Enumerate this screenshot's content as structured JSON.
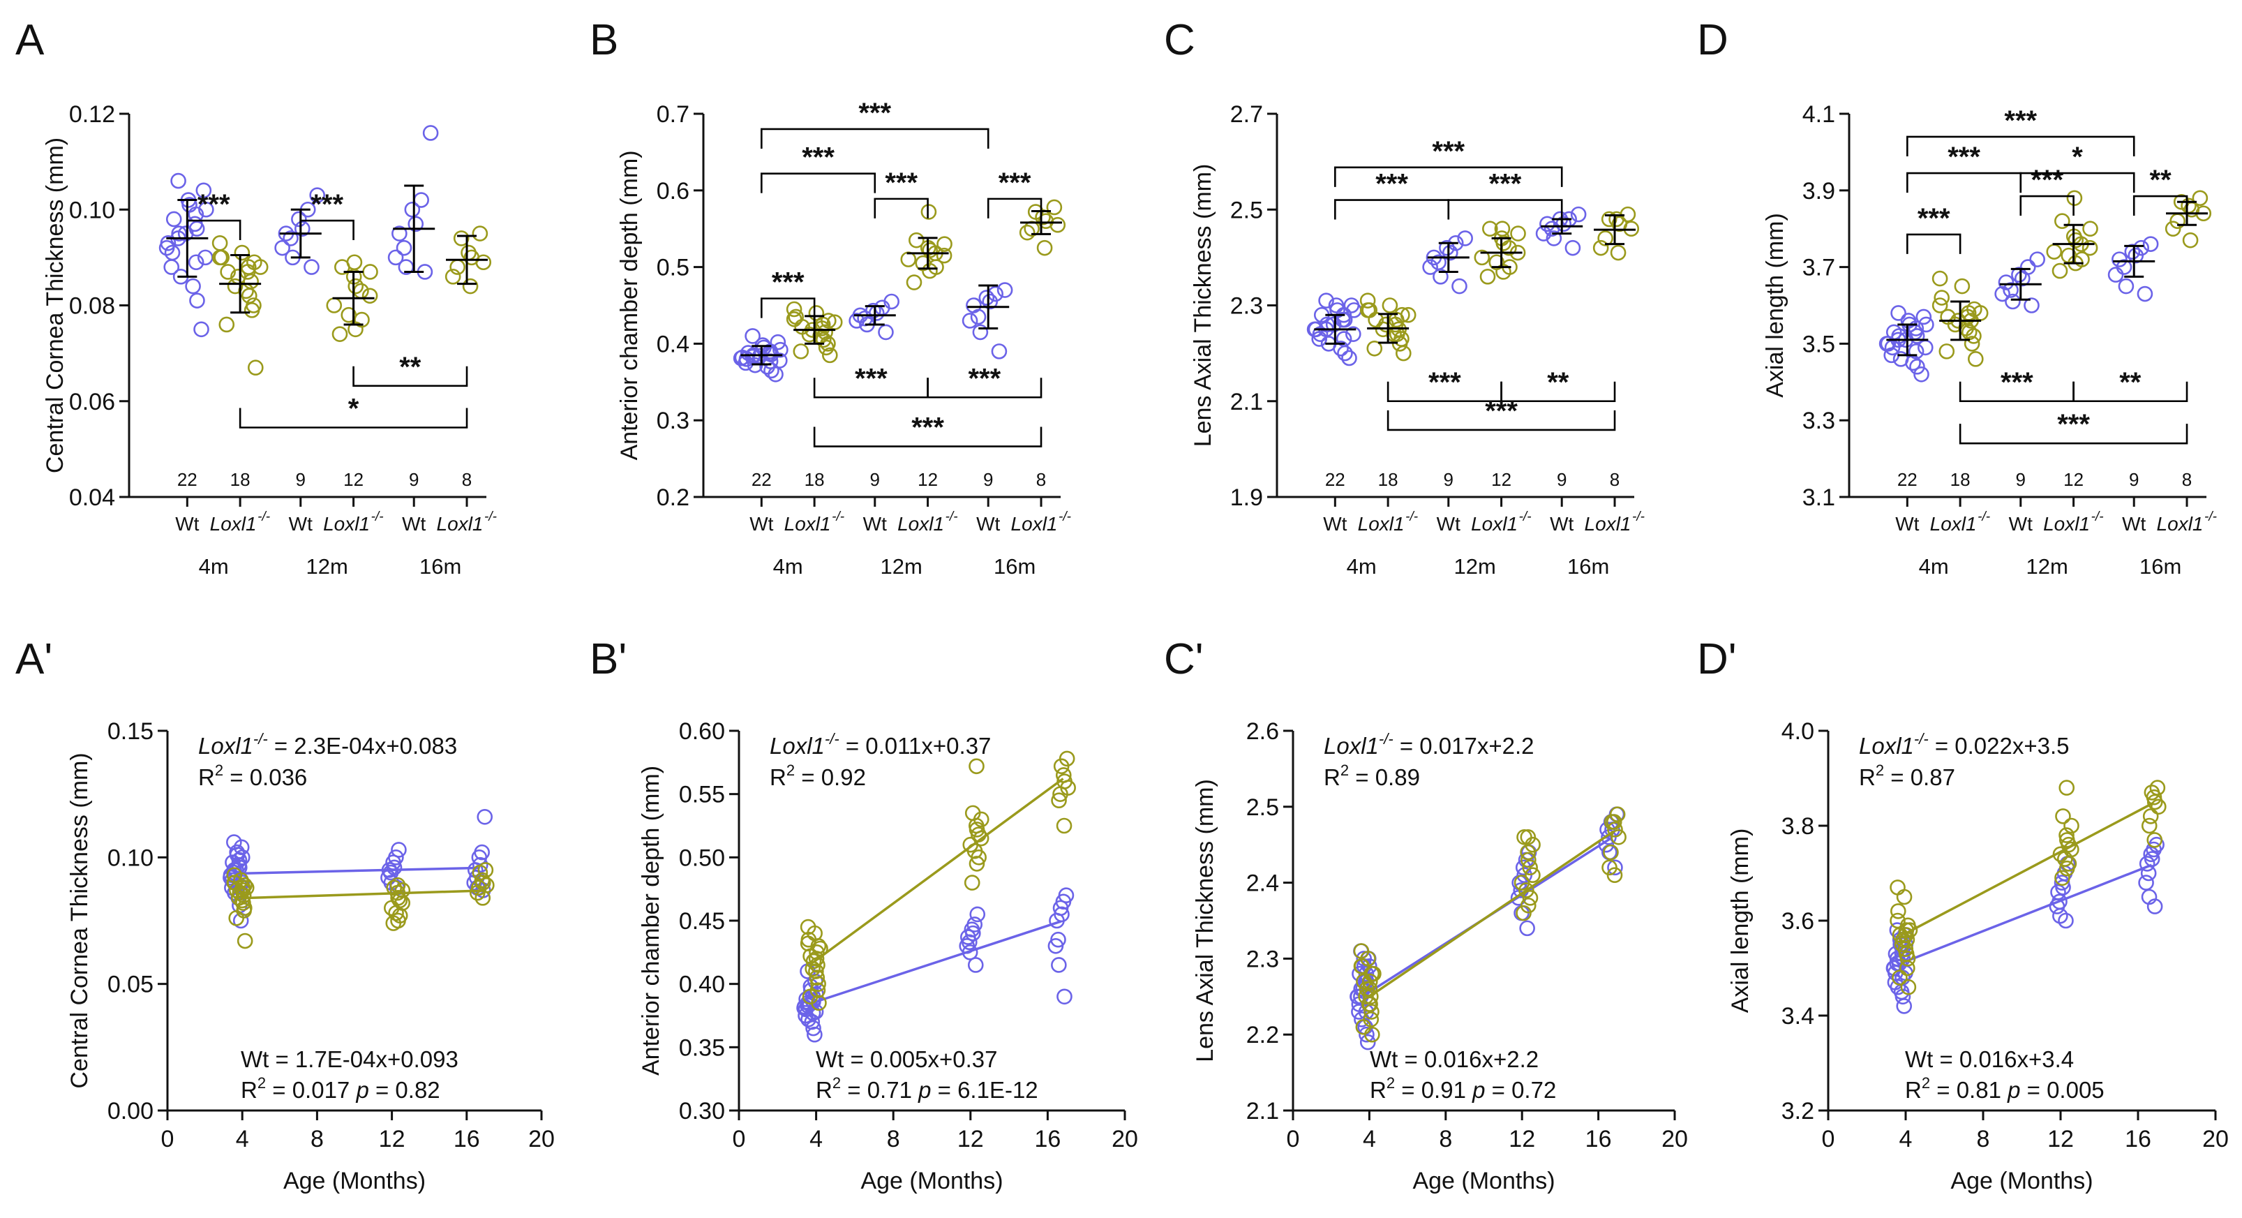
{
  "colors": {
    "wt": "#6b63e8",
    "ko": "#9a9a1c",
    "axis": "#111111"
  },
  "labels": {
    "genotype_wt": "Wt",
    "genotype_ko": "Loxl1",
    "genotype_ko_sup": "-/-",
    "ages": [
      "4m",
      "12m",
      "16m"
    ],
    "x_axis_title": "Age (Months)",
    "r2_prefix": "R",
    "r2_suffix": "2",
    "p_label": "p",
    "wt_eq_prefix": "Wt = "
  },
  "chart_data": [
    {
      "panel": "A",
      "type": "scatter",
      "ylabel": "Central Cornea Thickness (mm)",
      "ylim": [
        0.04,
        0.12
      ],
      "yticks": [
        "0.04",
        "0.06",
        "0.08",
        "0.10",
        "0.12"
      ],
      "n": [
        "22",
        "18",
        "9",
        "12",
        "9",
        "8"
      ],
      "groups": [
        {
          "mean": 0.094,
          "sd": 0.008,
          "values": [
            0.075,
            0.081,
            0.084,
            0.086,
            0.088,
            0.089,
            0.09,
            0.091,
            0.092,
            0.093,
            0.094,
            0.095,
            0.095,
            0.096,
            0.097,
            0.098,
            0.099,
            0.1,
            0.101,
            0.102,
            0.104,
            0.106
          ]
        },
        {
          "mean": 0.0845,
          "sd": 0.006,
          "values": [
            0.067,
            0.076,
            0.079,
            0.08,
            0.082,
            0.083,
            0.084,
            0.085,
            0.086,
            0.087,
            0.087,
            0.088,
            0.088,
            0.089,
            0.09,
            0.09,
            0.091,
            0.093
          ]
        },
        {
          "mean": 0.095,
          "sd": 0.005,
          "values": [
            0.088,
            0.09,
            0.092,
            0.094,
            0.095,
            0.096,
            0.098,
            0.1,
            0.103
          ]
        },
        {
          "mean": 0.0815,
          "sd": 0.0055,
          "values": [
            0.074,
            0.075,
            0.077,
            0.078,
            0.08,
            0.082,
            0.083,
            0.084,
            0.086,
            0.087,
            0.088,
            0.089
          ]
        },
        {
          "mean": 0.096,
          "sd": 0.009,
          "values": [
            0.087,
            0.088,
            0.09,
            0.092,
            0.095,
            0.097,
            0.1,
            0.102,
            0.116
          ]
        },
        {
          "mean": 0.0895,
          "sd": 0.005,
          "values": [
            0.084,
            0.086,
            0.088,
            0.089,
            0.09,
            0.091,
            0.094,
            0.095
          ]
        }
      ],
      "brackets": [
        {
          "a": 0,
          "b": 1,
          "label": "***",
          "y": 0.0977,
          "side": "top"
        },
        {
          "a": 2,
          "b": 3,
          "label": "***",
          "y": 0.0977,
          "side": "top"
        },
        {
          "a": 3,
          "b": 5,
          "label": "**",
          "y": 0.0632,
          "side": "bottom"
        },
        {
          "a": 1,
          "b": 5,
          "label": "*",
          "y": 0.0545,
          "side": "bottom"
        }
      ]
    },
    {
      "panel": "B",
      "type": "scatter",
      "ylabel": "Anterior chamber depth (mm)",
      "ylim": [
        0.2,
        0.7
      ],
      "yticks": [
        "0.2",
        "0.3",
        "0.4",
        "0.5",
        "0.6",
        "0.7"
      ],
      "n": [
        "22",
        "18",
        "9",
        "12",
        "9",
        "8"
      ],
      "groups": [
        {
          "mean": 0.385,
          "sd": 0.012,
          "values": [
            0.36,
            0.365,
            0.37,
            0.372,
            0.375,
            0.377,
            0.378,
            0.38,
            0.381,
            0.382,
            0.383,
            0.384,
            0.385,
            0.386,
            0.387,
            0.388,
            0.39,
            0.392,
            0.395,
            0.398,
            0.402,
            0.41
          ]
        },
        {
          "mean": 0.418,
          "sd": 0.018,
          "values": [
            0.385,
            0.39,
            0.395,
            0.4,
            0.405,
            0.41,
            0.412,
            0.415,
            0.418,
            0.42,
            0.422,
            0.425,
            0.428,
            0.43,
            0.432,
            0.435,
            0.44,
            0.445
          ]
        },
        {
          "mean": 0.437,
          "sd": 0.012,
          "values": [
            0.415,
            0.425,
            0.43,
            0.433,
            0.437,
            0.44,
            0.443,
            0.447,
            0.455
          ]
        },
        {
          "mean": 0.518,
          "sd": 0.02,
          "values": [
            0.48,
            0.495,
            0.5,
            0.505,
            0.51,
            0.515,
            0.518,
            0.522,
            0.525,
            0.53,
            0.535,
            0.572
          ]
        },
        {
          "mean": 0.448,
          "sd": 0.028,
          "values": [
            0.39,
            0.415,
            0.43,
            0.435,
            0.45,
            0.455,
            0.46,
            0.465,
            0.47
          ]
        },
        {
          "mean": 0.558,
          "sd": 0.015,
          "values": [
            0.525,
            0.545,
            0.55,
            0.555,
            0.56,
            0.565,
            0.572,
            0.578
          ]
        }
      ],
      "brackets": [
        {
          "a": 0,
          "b": 1,
          "label": "***",
          "y": 0.459,
          "side": "top"
        },
        {
          "a": 2,
          "b": 3,
          "label": "***",
          "y": 0.589,
          "side": "top"
        },
        {
          "a": 4,
          "b": 5,
          "label": "***",
          "y": 0.589,
          "side": "top"
        },
        {
          "a": 0,
          "b": 2,
          "label": "***",
          "y": 0.622,
          "side": "top"
        },
        {
          "a": 0,
          "b": 4,
          "label": "***",
          "y": 0.68,
          "side": "top"
        },
        {
          "a": 1,
          "b": 3,
          "label": "***",
          "y": 0.33,
          "side": "bottom"
        },
        {
          "a": 3,
          "b": 5,
          "label": "***",
          "y": 0.33,
          "side": "bottom"
        },
        {
          "a": 1,
          "b": 5,
          "label": "***",
          "y": 0.266,
          "side": "bottom"
        }
      ]
    },
    {
      "panel": "C",
      "type": "scatter",
      "ylabel": "Lens  Axial Thickness (mm)",
      "ylim": [
        1.9,
        2.7
      ],
      "yticks": [
        "1.9",
        "2.1",
        "2.3",
        "2.5",
        "2.7"
      ],
      "n": [
        "22",
        "18",
        "9",
        "12",
        "9",
        "8"
      ],
      "groups": [
        {
          "mean": 2.25,
          "sd": 0.03,
          "values": [
            2.19,
            2.2,
            2.21,
            2.22,
            2.23,
            2.23,
            2.24,
            2.24,
            2.25,
            2.25,
            2.25,
            2.26,
            2.26,
            2.27,
            2.27,
            2.28,
            2.28,
            2.29,
            2.29,
            2.3,
            2.3,
            2.31
          ]
        },
        {
          "mean": 2.252,
          "sd": 0.03,
          "values": [
            2.2,
            2.21,
            2.22,
            2.23,
            2.24,
            2.24,
            2.25,
            2.25,
            2.26,
            2.26,
            2.27,
            2.27,
            2.28,
            2.28,
            2.29,
            2.29,
            2.3,
            2.31
          ]
        },
        {
          "mean": 2.4,
          "sd": 0.03,
          "values": [
            2.34,
            2.36,
            2.38,
            2.39,
            2.4,
            2.41,
            2.42,
            2.43,
            2.44
          ]
        },
        {
          "mean": 2.41,
          "sd": 0.03,
          "values": [
            2.36,
            2.37,
            2.38,
            2.39,
            2.4,
            2.41,
            2.42,
            2.43,
            2.44,
            2.45,
            2.46,
            2.46
          ]
        },
        {
          "mean": 2.465,
          "sd": 0.015,
          "values": [
            2.42,
            2.44,
            2.45,
            2.46,
            2.47,
            2.47,
            2.48,
            2.48,
            2.49
          ]
        },
        {
          "mean": 2.458,
          "sd": 0.03,
          "values": [
            2.41,
            2.42,
            2.44,
            2.46,
            2.47,
            2.48,
            2.48,
            2.49
          ]
        }
      ],
      "brackets": [
        {
          "a": 0,
          "b": 2,
          "label": "***",
          "y": 2.52,
          "side": "top"
        },
        {
          "a": 2,
          "b": 4,
          "label": "***",
          "y": 2.52,
          "side": "top"
        },
        {
          "a": 0,
          "b": 4,
          "label": "***",
          "y": 2.588,
          "side": "top"
        },
        {
          "a": 1,
          "b": 3,
          "label": "***",
          "y": 2.1,
          "side": "bottom"
        },
        {
          "a": 3,
          "b": 5,
          "label": "**",
          "y": 2.1,
          "side": "bottom"
        },
        {
          "a": 1,
          "b": 5,
          "label": "***",
          "y": 2.04,
          "side": "bottom"
        }
      ]
    },
    {
      "panel": "D",
      "type": "scatter",
      "ylabel": "Axial length (mm)",
      "ylim": [
        3.1,
        4.1
      ],
      "yticks": [
        "3.1",
        "3.3",
        "3.5",
        "3.7",
        "3.9",
        "4.1"
      ],
      "n": [
        "22",
        "18",
        "9",
        "12",
        "9",
        "8"
      ],
      "groups": [
        {
          "mean": 3.51,
          "sd": 0.04,
          "values": [
            3.42,
            3.44,
            3.45,
            3.46,
            3.47,
            3.48,
            3.49,
            3.49,
            3.5,
            3.5,
            3.51,
            3.51,
            3.52,
            3.52,
            3.53,
            3.53,
            3.54,
            3.55,
            3.55,
            3.56,
            3.57,
            3.58
          ]
        },
        {
          "mean": 3.56,
          "sd": 0.05,
          "values": [
            3.46,
            3.48,
            3.5,
            3.52,
            3.53,
            3.54,
            3.55,
            3.56,
            3.56,
            3.57,
            3.57,
            3.58,
            3.58,
            3.59,
            3.6,
            3.62,
            3.65,
            3.67
          ]
        },
        {
          "mean": 3.655,
          "sd": 0.04,
          "values": [
            3.6,
            3.61,
            3.63,
            3.64,
            3.66,
            3.67,
            3.68,
            3.7,
            3.72
          ]
        },
        {
          "mean": 3.76,
          "sd": 0.05,
          "values": [
            3.69,
            3.71,
            3.72,
            3.73,
            3.74,
            3.75,
            3.76,
            3.77,
            3.78,
            3.8,
            3.82,
            3.88
          ]
        },
        {
          "mean": 3.715,
          "sd": 0.04,
          "values": [
            3.63,
            3.65,
            3.68,
            3.7,
            3.72,
            3.73,
            3.74,
            3.75,
            3.76
          ]
        },
        {
          "mean": 3.84,
          "sd": 0.03,
          "values": [
            3.77,
            3.8,
            3.82,
            3.84,
            3.85,
            3.86,
            3.87,
            3.88
          ]
        }
      ],
      "brackets": [
        {
          "a": 0,
          "b": 1,
          "label": "***",
          "y": 3.785,
          "side": "top"
        },
        {
          "a": 2,
          "b": 3,
          "label": "***",
          "y": 3.885,
          "side": "top"
        },
        {
          "a": 4,
          "b": 5,
          "label": "**",
          "y": 3.885,
          "side": "top"
        },
        {
          "a": 0,
          "b": 2,
          "label": "***",
          "y": 3.945,
          "side": "top"
        },
        {
          "a": 2,
          "b": 4,
          "label": "*",
          "y": 3.945,
          "side": "top"
        },
        {
          "a": 0,
          "b": 4,
          "label": "***",
          "y": 4.04,
          "side": "top"
        },
        {
          "a": 1,
          "b": 3,
          "label": "***",
          "y": 3.35,
          "side": "bottom"
        },
        {
          "a": 3,
          "b": 5,
          "label": "**",
          "y": 3.35,
          "side": "bottom"
        },
        {
          "a": 1,
          "b": 5,
          "label": "***",
          "y": 3.24,
          "side": "bottom"
        }
      ]
    },
    {
      "panel": "A'",
      "type": "scatter",
      "ylabel": "Central Cornea Thickness (mm)",
      "xlabel": "Age (Months)",
      "xlim": [
        0,
        20
      ],
      "ylim": [
        0,
        0.15
      ],
      "xticks": [
        "0",
        "4",
        "8",
        "12",
        "16",
        "20"
      ],
      "yticks": [
        "0.00",
        "0.05",
        "0.10",
        "0.15"
      ],
      "series": [
        {
          "name": "Wt",
          "ages": [
            3.7,
            12.1,
            16.7
          ],
          "slope": 0.00017,
          "intercept": 0.093,
          "groupIndex": [
            0,
            2,
            4
          ]
        },
        {
          "name": "Loxl1-/-",
          "ages": [
            3.9,
            12.3,
            16.8
          ],
          "slope": 0.00023,
          "intercept": 0.083,
          "groupIndex": [
            1,
            3,
            5
          ]
        }
      ],
      "ko_eq": " = 2.3E-04x+0.083",
      "ko_r2": " = 0.036",
      "wt_eq": "1.7E-04x+0.093",
      "wt_r2": " = 0.017",
      "wt_p": " = 0.82"
    },
    {
      "panel": "B'",
      "type": "scatter",
      "ylabel": "Anterior chamber depth (mm)",
      "xlabel": "Age (Months)",
      "xlim": [
        0,
        20
      ],
      "ylim": [
        0.3,
        0.6
      ],
      "xticks": [
        "0",
        "4",
        "8",
        "12",
        "16",
        "20"
      ],
      "yticks": [
        "0.30",
        "0.35",
        "0.40",
        "0.45",
        "0.50",
        "0.55",
        "0.60"
      ],
      "series": [
        {
          "name": "Wt",
          "ages": [
            3.7,
            12.1,
            16.7
          ],
          "slope": 0.005,
          "intercept": 0.366,
          "groupIndex": [
            0,
            2,
            4
          ]
        },
        {
          "name": "Loxl1-/-",
          "ages": [
            3.9,
            12.3,
            16.8
          ],
          "slope": 0.0112,
          "intercept": 0.374,
          "groupIndex": [
            1,
            3,
            5
          ]
        }
      ],
      "ko_eq": " = 0.011x+0.37",
      "ko_r2": " = 0.92",
      "wt_eq": "0.005x+0.37",
      "wt_r2": " = 0.71",
      "wt_p": " = 6.1E-12"
    },
    {
      "panel": "C'",
      "type": "scatter",
      "ylabel": "Lens  Axial Thickness (mm)",
      "xlabel": "Age (Months)",
      "xlim": [
        0,
        20
      ],
      "ylim": [
        2.1,
        2.6
      ],
      "xticks": [
        "0",
        "4",
        "8",
        "12",
        "16",
        "20"
      ],
      "yticks": [
        "2.1",
        "2.2",
        "2.3",
        "2.4",
        "2.5",
        "2.6"
      ],
      "series": [
        {
          "name": "Wt",
          "ages": [
            3.7,
            12.1,
            16.7
          ],
          "slope": 0.016,
          "intercept": 2.192,
          "groupIndex": [
            0,
            2,
            4
          ]
        },
        {
          "name": "Loxl1-/-",
          "ages": [
            3.9,
            12.3,
            16.8
          ],
          "slope": 0.017,
          "intercept": 2.182,
          "groupIndex": [
            1,
            3,
            5
          ]
        }
      ],
      "ko_eq": " = 0.017x+2.2",
      "ko_r2": " = 0.89",
      "wt_eq": "0.016x+2.2",
      "wt_r2": " = 0.91",
      "wt_p": " = 0.72"
    },
    {
      "panel": "D'",
      "type": "scatter",
      "ylabel": "Axial length (mm)",
      "xlabel": "Age (Months)",
      "xlim": [
        0,
        20
      ],
      "ylim": [
        3.2,
        4.0
      ],
      "xticks": [
        "0",
        "4",
        "8",
        "12",
        "16",
        "20"
      ],
      "yticks": [
        "3.2",
        "3.4",
        "3.6",
        "3.8",
        "4.0"
      ],
      "series": [
        {
          "name": "Wt",
          "ages": [
            3.7,
            12.1,
            16.7
          ],
          "slope": 0.016,
          "intercept": 3.45,
          "groupIndex": [
            0,
            2,
            4
          ]
        },
        {
          "name": "Loxl1-/-",
          "ages": [
            3.9,
            12.3,
            16.8
          ],
          "slope": 0.0215,
          "intercept": 3.487,
          "groupIndex": [
            1,
            3,
            5
          ]
        }
      ],
      "ko_eq": " = 0.022x+3.5",
      "ko_r2": " = 0.87",
      "wt_eq": "0.016x+3.4",
      "wt_r2": " = 0.81",
      "wt_p": " = 0.005"
    }
  ]
}
